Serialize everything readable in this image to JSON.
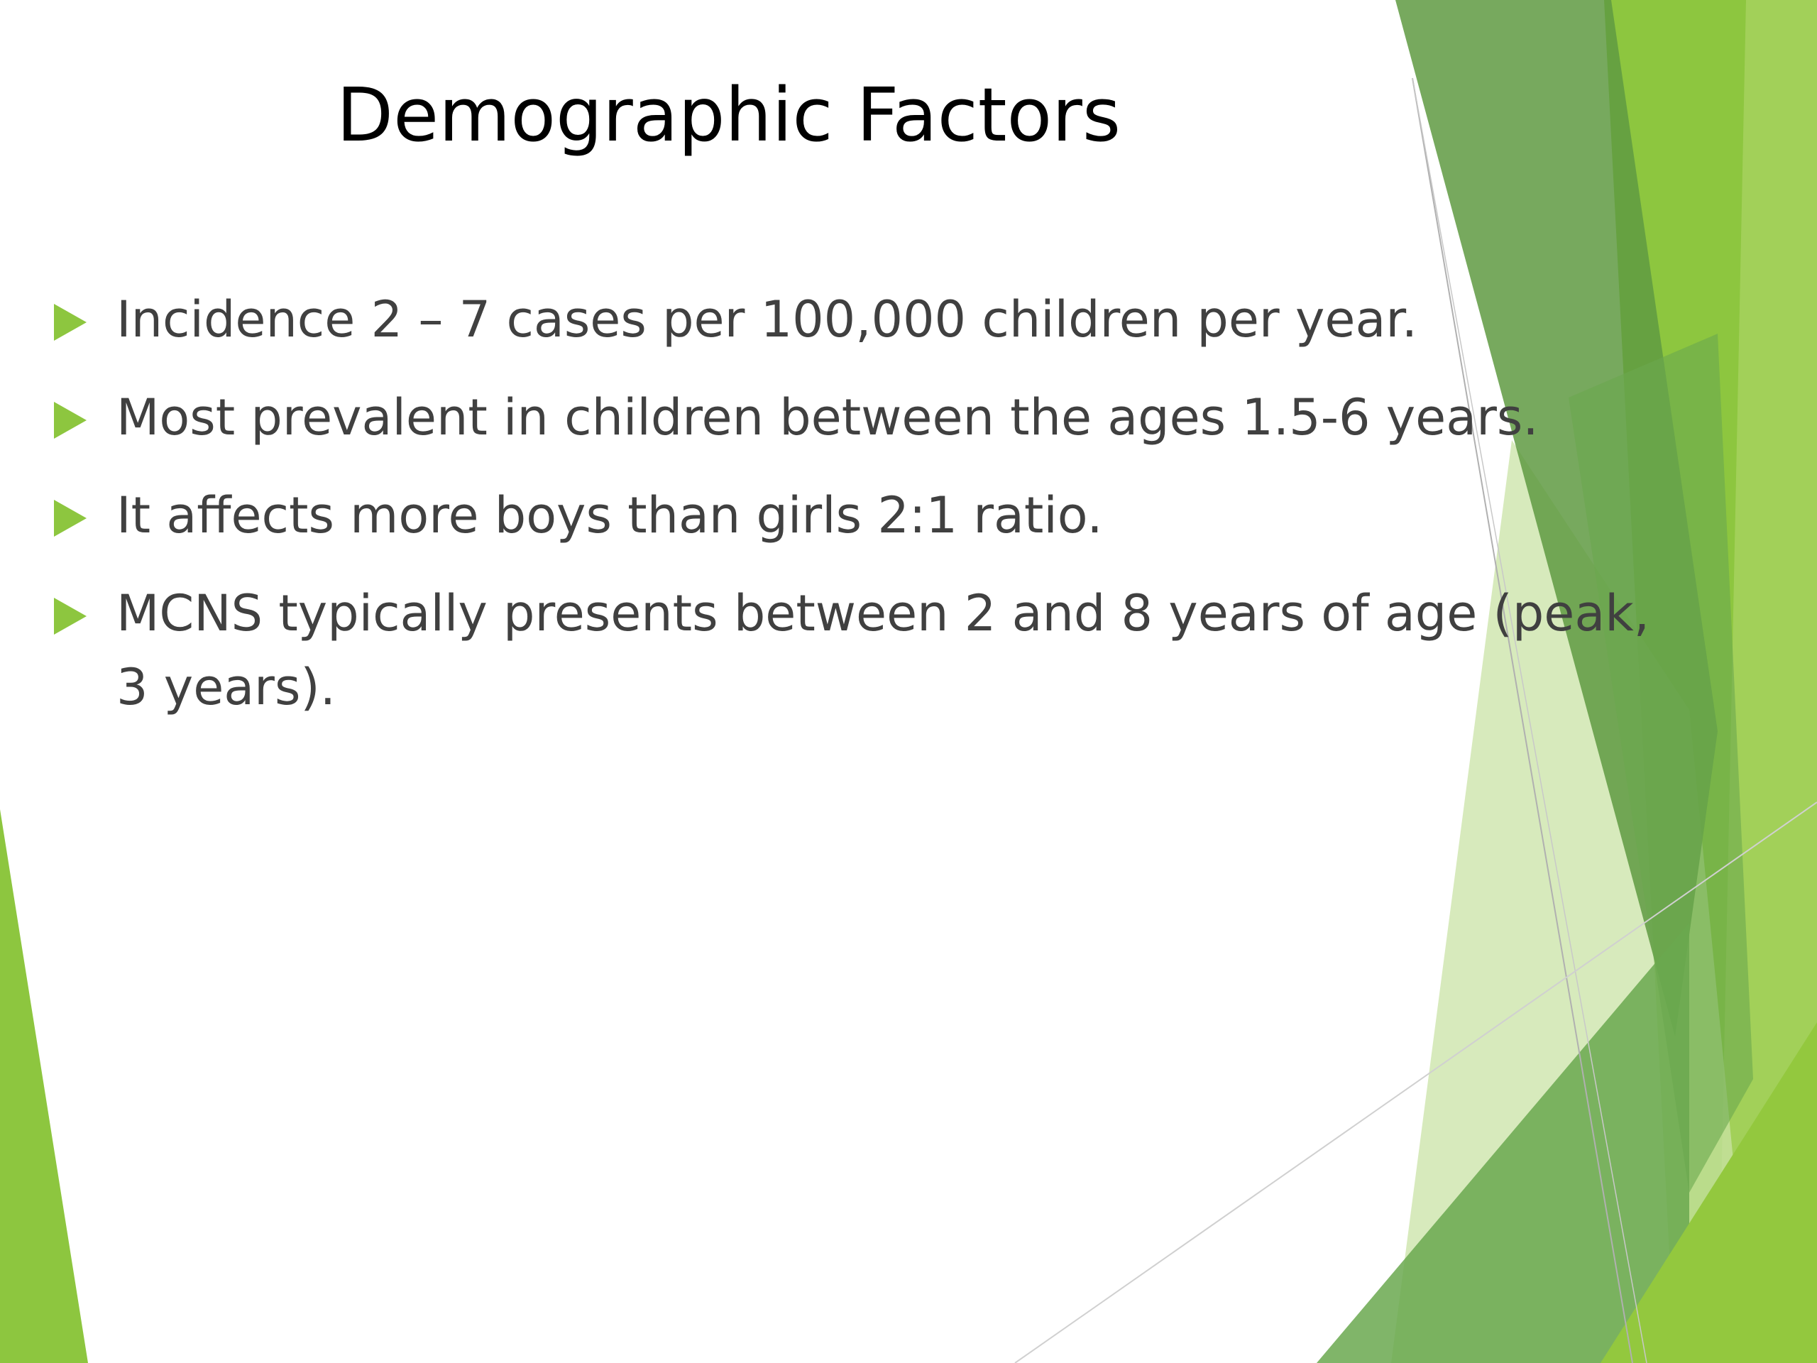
{
  "slide": {
    "title": "Demographic Factors",
    "bullets": [
      {
        "text": "Incidence 2 – 7 cases per 100,000 children per year."
      },
      {
        "text": "Most prevalent in children between the ages 1.5-6 years."
      },
      {
        "text": "It affects more boys than girls  2:1 ratio."
      },
      {
        "text": "MCNS typically presents between 2 and 8 years of age (peak, 3 years)."
      }
    ],
    "bullet_marker_icon": "triangle-right-icon",
    "colors": {
      "accent_green": "#8dc63f",
      "dark_green": "#5d9a3c",
      "light_green": "#c9e3a6",
      "text": "#404040",
      "title": "#000000"
    }
  }
}
